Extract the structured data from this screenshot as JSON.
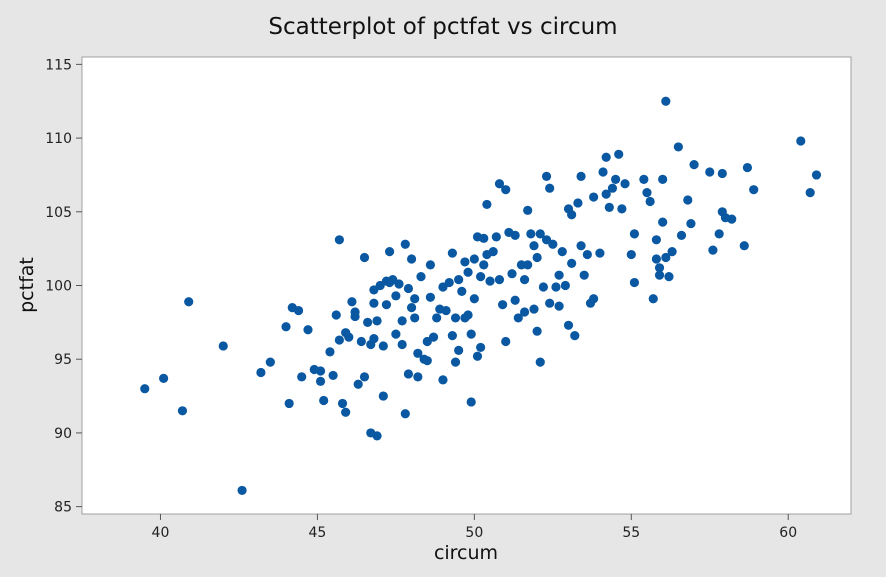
{
  "chart_data": {
    "type": "scatter",
    "title": "Scatterplot of pctfat vs circum",
    "xlabel": "circum",
    "ylabel": "pctfat",
    "xlim": [
      37.5,
      62.0
    ],
    "ylim": [
      84.5,
      115.5
    ],
    "xticks": [
      "40",
      "45",
      "50",
      "55",
      "60"
    ],
    "yticks": [
      "85",
      "90",
      "95",
      "100",
      "105",
      "110",
      "115"
    ],
    "grid": false,
    "marker_color": "#0a58a1",
    "plot_background": "#ffffff",
    "figure_background": "#e6e6e6",
    "series": [
      {
        "points": [
          [
            39.5,
            93.0
          ],
          [
            40.1,
            93.7
          ],
          [
            40.7,
            91.5
          ],
          [
            40.9,
            98.9
          ],
          [
            42.0,
            95.9
          ],
          [
            42.6,
            86.1
          ],
          [
            43.2,
            94.1
          ],
          [
            43.5,
            94.8
          ],
          [
            44.0,
            97.2
          ],
          [
            44.1,
            92.0
          ],
          [
            44.2,
            98.5
          ],
          [
            44.4,
            98.3
          ],
          [
            44.5,
            93.8
          ],
          [
            44.7,
            97.0
          ],
          [
            44.9,
            94.3
          ],
          [
            45.1,
            94.2
          ],
          [
            45.1,
            93.5
          ],
          [
            45.2,
            92.2
          ],
          [
            45.4,
            95.5
          ],
          [
            45.5,
            93.9
          ],
          [
            45.6,
            98.0
          ],
          [
            45.7,
            96.3
          ],
          [
            45.7,
            103.1
          ],
          [
            45.8,
            92.0
          ],
          [
            45.9,
            96.8
          ],
          [
            45.9,
            91.4
          ],
          [
            46.0,
            96.5
          ],
          [
            46.1,
            98.9
          ],
          [
            46.2,
            98.2
          ],
          [
            46.2,
            97.9
          ],
          [
            46.3,
            93.3
          ],
          [
            46.4,
            96.2
          ],
          [
            46.5,
            93.8
          ],
          [
            46.5,
            101.9
          ],
          [
            46.6,
            97.5
          ],
          [
            46.7,
            96.0
          ],
          [
            46.7,
            90.0
          ],
          [
            46.8,
            98.8
          ],
          [
            46.8,
            99.7
          ],
          [
            46.8,
            96.4
          ],
          [
            46.9,
            89.8
          ],
          [
            46.9,
            97.6
          ],
          [
            47.0,
            100.0
          ],
          [
            47.1,
            95.9
          ],
          [
            47.1,
            92.5
          ],
          [
            47.2,
            98.7
          ],
          [
            47.2,
            100.3
          ],
          [
            47.3,
            100.2
          ],
          [
            47.3,
            102.3
          ],
          [
            47.4,
            100.4
          ],
          [
            47.5,
            96.7
          ],
          [
            47.5,
            99.3
          ],
          [
            47.6,
            100.1
          ],
          [
            47.7,
            97.6
          ],
          [
            47.7,
            96.0
          ],
          [
            47.8,
            102.8
          ],
          [
            47.8,
            91.3
          ],
          [
            47.9,
            99.8
          ],
          [
            47.9,
            94.0
          ],
          [
            48.0,
            98.5
          ],
          [
            48.0,
            101.8
          ],
          [
            48.1,
            97.8
          ],
          [
            48.1,
            99.1
          ],
          [
            48.2,
            95.4
          ],
          [
            48.2,
            93.8
          ],
          [
            48.3,
            100.6
          ],
          [
            48.4,
            95.0
          ],
          [
            48.5,
            96.2
          ],
          [
            48.5,
            94.9
          ],
          [
            48.6,
            99.2
          ],
          [
            48.6,
            101.4
          ],
          [
            48.7,
            96.5
          ],
          [
            48.8,
            97.8
          ],
          [
            48.9,
            98.4
          ],
          [
            49.0,
            99.9
          ],
          [
            49.0,
            93.6
          ],
          [
            49.1,
            98.3
          ],
          [
            49.2,
            100.2
          ],
          [
            49.3,
            102.2
          ],
          [
            49.3,
            96.6
          ],
          [
            49.4,
            97.8
          ],
          [
            49.4,
            94.8
          ],
          [
            49.5,
            100.4
          ],
          [
            49.5,
            95.6
          ],
          [
            49.6,
            99.6
          ],
          [
            49.7,
            101.6
          ],
          [
            49.7,
            97.8
          ],
          [
            49.8,
            98.0
          ],
          [
            49.8,
            100.9
          ],
          [
            49.9,
            96.7
          ],
          [
            49.9,
            92.1
          ],
          [
            50.0,
            101.8
          ],
          [
            50.0,
            99.1
          ],
          [
            50.1,
            103.3
          ],
          [
            50.1,
            95.2
          ],
          [
            50.2,
            100.6
          ],
          [
            50.2,
            95.8
          ],
          [
            50.3,
            103.2
          ],
          [
            50.3,
            101.4
          ],
          [
            50.4,
            105.5
          ],
          [
            50.4,
            102.1
          ],
          [
            50.5,
            100.3
          ],
          [
            50.6,
            102.3
          ],
          [
            50.7,
            103.3
          ],
          [
            50.8,
            106.9
          ],
          [
            50.8,
            100.4
          ],
          [
            50.9,
            98.7
          ],
          [
            51.0,
            96.2
          ],
          [
            51.0,
            106.5
          ],
          [
            51.1,
            103.6
          ],
          [
            51.2,
            100.8
          ],
          [
            51.3,
            99.0
          ],
          [
            51.3,
            103.4
          ],
          [
            51.4,
            97.8
          ],
          [
            51.5,
            101.4
          ],
          [
            51.6,
            100.4
          ],
          [
            51.6,
            98.2
          ],
          [
            51.7,
            105.1
          ],
          [
            51.7,
            101.4
          ],
          [
            51.8,
            103.5
          ],
          [
            51.9,
            98.4
          ],
          [
            51.9,
            102.7
          ],
          [
            52.0,
            101.9
          ],
          [
            52.0,
            96.9
          ],
          [
            52.1,
            103.5
          ],
          [
            52.1,
            94.8
          ],
          [
            52.2,
            99.9
          ],
          [
            52.3,
            107.4
          ],
          [
            52.3,
            103.1
          ],
          [
            52.4,
            106.6
          ],
          [
            52.4,
            98.8
          ],
          [
            52.5,
            102.8
          ],
          [
            52.6,
            99.9
          ],
          [
            52.7,
            100.7
          ],
          [
            52.7,
            98.6
          ],
          [
            52.8,
            102.3
          ],
          [
            52.9,
            100.0
          ],
          [
            53.0,
            105.2
          ],
          [
            53.0,
            97.3
          ],
          [
            53.1,
            104.8
          ],
          [
            53.1,
            101.5
          ],
          [
            53.2,
            96.6
          ],
          [
            53.3,
            105.6
          ],
          [
            53.4,
            107.4
          ],
          [
            53.4,
            102.7
          ],
          [
            53.5,
            100.7
          ],
          [
            53.6,
            102.1
          ],
          [
            53.7,
            98.8
          ],
          [
            53.8,
            106.0
          ],
          [
            53.8,
            99.1
          ],
          [
            54.0,
            102.2
          ],
          [
            54.1,
            107.7
          ],
          [
            54.2,
            108.7
          ],
          [
            54.2,
            106.2
          ],
          [
            54.3,
            105.3
          ],
          [
            54.4,
            106.6
          ],
          [
            54.5,
            107.2
          ],
          [
            54.6,
            108.9
          ],
          [
            54.7,
            105.2
          ],
          [
            54.8,
            106.9
          ],
          [
            55.0,
            102.1
          ],
          [
            55.1,
            100.2
          ],
          [
            55.1,
            103.5
          ],
          [
            55.4,
            107.2
          ],
          [
            55.5,
            106.3
          ],
          [
            55.6,
            105.7
          ],
          [
            55.7,
            99.1
          ],
          [
            55.8,
            103.1
          ],
          [
            55.8,
            101.8
          ],
          [
            55.9,
            101.2
          ],
          [
            55.9,
            100.7
          ],
          [
            56.0,
            107.2
          ],
          [
            56.0,
            104.3
          ],
          [
            56.1,
            112.5
          ],
          [
            56.1,
            101.9
          ],
          [
            56.2,
            100.6
          ],
          [
            56.3,
            102.3
          ],
          [
            56.5,
            109.4
          ],
          [
            56.6,
            103.4
          ],
          [
            56.8,
            105.8
          ],
          [
            56.9,
            104.2
          ],
          [
            57.0,
            108.2
          ],
          [
            57.5,
            107.7
          ],
          [
            57.6,
            102.4
          ],
          [
            57.8,
            103.5
          ],
          [
            57.9,
            107.6
          ],
          [
            57.9,
            105.0
          ],
          [
            58.0,
            104.6
          ],
          [
            58.2,
            104.5
          ],
          [
            58.6,
            102.7
          ],
          [
            58.7,
            108.0
          ],
          [
            58.9,
            106.5
          ],
          [
            60.4,
            109.8
          ],
          [
            60.7,
            106.3
          ],
          [
            60.9,
            107.5
          ]
        ]
      }
    ]
  }
}
